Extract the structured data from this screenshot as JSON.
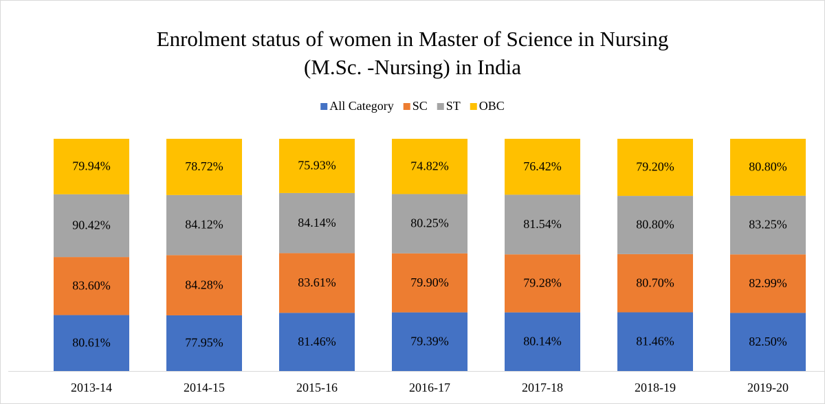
{
  "chart_data": {
    "type": "bar",
    "stacked": "percent",
    "title": [
      "Enrolment status of women in Master of Science in Nursing",
      "(M.Sc. -Nursing) in India"
    ],
    "categories": [
      "2013-14",
      "2014-15",
      "2015-16",
      "2016-17",
      "2017-18",
      "2018-19",
      "2019-20"
    ],
    "legend": "top",
    "series": [
      {
        "name": "All Category",
        "color": "#4472c4",
        "values": [
          80.61,
          77.95,
          81.46,
          79.39,
          80.14,
          81.46,
          82.5
        ],
        "value_labels": [
          "80.61%",
          "77.95%",
          "81.46%",
          "79.39%",
          "80.14%",
          "81.46%",
          "82.50%"
        ]
      },
      {
        "name": "SC",
        "color": "#ed7d31",
        "values": [
          83.6,
          84.28,
          83.61,
          79.9,
          79.28,
          80.7,
          82.99
        ],
        "value_labels": [
          "83.60%",
          "84.28%",
          "83.61%",
          "79.90%",
          "79.28%",
          "80.70%",
          "82.99%"
        ]
      },
      {
        "name": "ST",
        "color": "#a5a5a5",
        "values": [
          90.42,
          84.12,
          84.14,
          80.25,
          81.54,
          80.8,
          83.25
        ],
        "value_labels": [
          "90.42%",
          "84.12%",
          "84.14%",
          "80.25%",
          "81.54%",
          "80.80%",
          "83.25%"
        ]
      },
      {
        "name": "OBC",
        "color": "#ffc000",
        "values": [
          79.94,
          78.72,
          75.93,
          74.82,
          76.42,
          79.2,
          80.8
        ],
        "value_labels": [
          "79.94%",
          "78.72%",
          "75.93%",
          "74.82%",
          "76.42%",
          "79.20%",
          "80.80%"
        ]
      }
    ]
  }
}
